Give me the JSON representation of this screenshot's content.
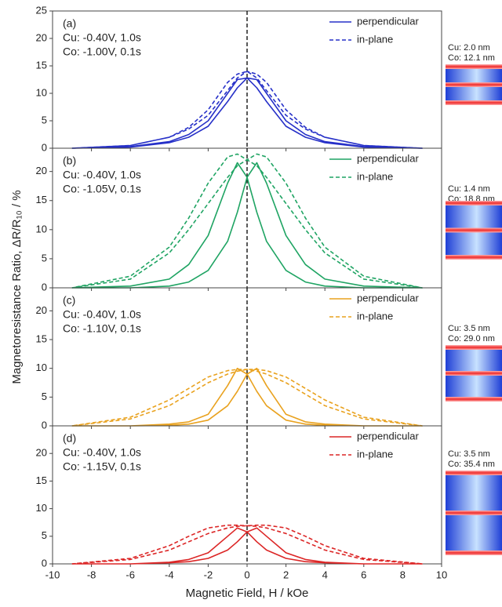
{
  "ylabel": "Magnetoresistance Ratio, ΔR/R₁₀ / %",
  "chart_data": [
    {
      "type": "line",
      "annotations": [
        "(a)",
        "Cu: -0.40V, 1.0s",
        "Co: -1.00V, 0.1s"
      ],
      "color": "#2630c8",
      "side_labels": [
        "Cu: 2.0 nm",
        "Co: 12.1 nm"
      ],
      "ylim": [
        0,
        25
      ],
      "yticks": [
        0,
        5,
        10,
        15,
        20,
        25
      ],
      "vline": 0,
      "series": [
        {
          "name": "perpendicular",
          "linestyle": "solid",
          "color": "#2630c8",
          "x": [
            -9,
            -6,
            -4,
            -3,
            -2,
            -1,
            -0.5,
            0,
            0.5,
            1,
            2,
            3,
            4,
            6,
            9,
            9,
            6,
            4,
            3,
            2,
            1,
            0.5,
            0,
            -0.5,
            -1,
            -2,
            -3,
            -4,
            -6,
            -9
          ],
          "values": [
            0,
            0.2,
            1,
            2,
            4,
            8.5,
            11,
            12.8,
            12.5,
            10,
            5,
            2.5,
            1.2,
            0.3,
            0,
            0,
            0.2,
            1,
            2,
            4,
            8.5,
            11,
            12.8,
            12.5,
            10,
            5,
            2.5,
            1.2,
            0.3,
            0
          ]
        },
        {
          "name": "in-plane",
          "linestyle": "dashed",
          "color": "#2630c8",
          "x": [
            -9,
            -6,
            -4,
            -3,
            -2,
            -1,
            -0.5,
            0,
            0.5,
            1,
            2,
            3,
            4,
            6,
            9,
            9,
            6,
            4,
            3,
            2,
            1,
            0.5,
            0,
            -0.5,
            -1,
            -2,
            -3,
            -4,
            -6,
            -9
          ],
          "values": [
            0,
            0.5,
            2,
            3.5,
            6,
            10.5,
            12.8,
            14,
            13.5,
            12,
            7,
            3.8,
            2,
            0.5,
            0,
            0,
            0.5,
            2,
            3.5,
            6,
            10.5,
            12.8,
            14,
            13.5,
            12,
            7,
            3.8,
            2,
            0.5,
            0
          ]
        }
      ]
    },
    {
      "type": "line",
      "annotations": [
        "(b)",
        "Cu: -0.40V, 1.0s",
        "Co: -1.05V, 0.1s"
      ],
      "color": "#1fa463",
      "side_labels": [
        "Cu: 1.4 nm",
        "Co: 18.8 nm"
      ],
      "ylim": [
        0,
        24
      ],
      "yticks": [
        0,
        5,
        10,
        15,
        20
      ],
      "vline": 0,
      "series": [
        {
          "name": "perpendicular",
          "linestyle": "solid",
          "color": "#1fa463",
          "x": [
            -9,
            -6,
            -4,
            -3,
            -2,
            -1,
            -0.5,
            0,
            0.5,
            1,
            2,
            3,
            4,
            6,
            9,
            9,
            6,
            4,
            3,
            2,
            1,
            0.5,
            0,
            -0.5,
            -1,
            -2,
            -3,
            -4,
            -6,
            -9
          ],
          "values": [
            0,
            0,
            0.3,
            1,
            3,
            8,
            13,
            19,
            21.5,
            18,
            9,
            4,
            1.5,
            0.3,
            0,
            0,
            0,
            0.3,
            1,
            3,
            8,
            13,
            19,
            21.5,
            18,
            9,
            4,
            1.5,
            0.3,
            0
          ]
        },
        {
          "name": "in-plane",
          "linestyle": "dashed",
          "color": "#1fa463",
          "x": [
            -9,
            -6,
            -4,
            -3,
            -2,
            -1,
            -0.5,
            0,
            0.5,
            1,
            2,
            3,
            4,
            6,
            9,
            9,
            6,
            4,
            3,
            2,
            1,
            0.5,
            0,
            -0.5,
            -1,
            -2,
            -3,
            -4,
            -6,
            -9
          ],
          "values": [
            0,
            1.5,
            6,
            10,
            14.5,
            19,
            21,
            22,
            23,
            22.5,
            18,
            12,
            7,
            2,
            0,
            0,
            1.5,
            6,
            10,
            14.5,
            19,
            21,
            22,
            23,
            22.5,
            18,
            12,
            7,
            2,
            0
          ]
        }
      ]
    },
    {
      "type": "line",
      "annotations": [
        "(c)",
        "Cu: -0.40V, 1.0s",
        "Co: -1.10V, 0.1s"
      ],
      "color": "#e9a21f",
      "side_labels": [
        "Cu: 3.5 nm",
        "Co: 29.0 nm"
      ],
      "ylim": [
        0,
        24
      ],
      "yticks": [
        0,
        5,
        10,
        15,
        20
      ],
      "vline": 0,
      "series": [
        {
          "name": "perpendicular",
          "linestyle": "solid",
          "color": "#e9a21f",
          "x": [
            -9,
            -6,
            -4,
            -3,
            -2,
            -1,
            -0.5,
            0,
            0.5,
            1,
            2,
            3,
            4,
            6,
            9,
            9,
            6,
            4,
            3,
            2,
            1,
            0.5,
            0,
            -0.5,
            -1,
            -2,
            -3,
            -4,
            -6,
            -9
          ],
          "values": [
            0,
            0,
            0.1,
            0.3,
            1,
            3.5,
            6,
            9,
            10,
            7,
            2,
            0.7,
            0.3,
            0,
            0,
            0,
            0,
            0.1,
            0.3,
            1,
            3.5,
            6,
            9,
            10,
            7,
            2,
            0.7,
            0.3,
            0,
            0
          ]
        },
        {
          "name": "in-plane",
          "linestyle": "dashed",
          "color": "#e9a21f",
          "x": [
            -9,
            -6,
            -4,
            -3,
            -2,
            -1,
            -0.5,
            0,
            0.5,
            1,
            2,
            3,
            4,
            6,
            9,
            9,
            6,
            4,
            3,
            2,
            1,
            0.5,
            0,
            -0.5,
            -1,
            -2,
            -3,
            -4,
            -6,
            -9
          ],
          "values": [
            0,
            1.2,
            3.5,
            5.5,
            7.5,
            9,
            9.5,
            9.8,
            9.8,
            9.6,
            8.5,
            6.5,
            4.5,
            1.5,
            0,
            0,
            1.2,
            3.5,
            5.5,
            7.5,
            9,
            9.5,
            9.8,
            9.8,
            9.6,
            8.5,
            6.5,
            4.5,
            1.5,
            0
          ]
        }
      ]
    },
    {
      "type": "line",
      "annotations": [
        "(d)",
        "Cu: -0.40V, 1.0s",
        "Co: -1.15V, 0.1s"
      ],
      "color": "#dc2626",
      "side_labels": [
        "Cu: 3.5 nm",
        "Co: 35.4 nm"
      ],
      "ylim": [
        0,
        25
      ],
      "yticks": [
        0,
        5,
        10,
        15,
        20
      ],
      "vline": 0,
      "xlabel": "Magnetic Field, H / kOe",
      "xlim": [
        -10,
        10
      ],
      "xticks": [
        -10,
        -8,
        -6,
        -4,
        -2,
        0,
        2,
        4,
        6,
        8,
        10
      ],
      "series": [
        {
          "name": "perpendicular",
          "linestyle": "solid",
          "color": "#dc2626",
          "x": [
            -9,
            -6,
            -4,
            -3,
            -2,
            -1,
            -0.5,
            0,
            0.5,
            1,
            2,
            3,
            4,
            6,
            9,
            9,
            6,
            4,
            3,
            2,
            1,
            0.5,
            0,
            -0.5,
            -1,
            -2,
            -3,
            -4,
            -6,
            -9
          ],
          "values": [
            0,
            0,
            0.2,
            0.4,
            1,
            2.5,
            4,
            5.8,
            6.5,
            5,
            2,
            0.8,
            0.3,
            0,
            0,
            0,
            0,
            0.2,
            0.4,
            1,
            2.5,
            4,
            5.8,
            6.5,
            5,
            2,
            0.8,
            0.3,
            0,
            0
          ]
        },
        {
          "name": "in-plane",
          "linestyle": "dashed",
          "color": "#dc2626",
          "x": [
            -9,
            -6,
            -4,
            -3,
            -2,
            -1,
            -0.5,
            0,
            0.5,
            1,
            2,
            3,
            4,
            6,
            9,
            9,
            6,
            4,
            3,
            2,
            1,
            0.5,
            0,
            -0.5,
            -1,
            -2,
            -3,
            -4,
            -6,
            -9
          ],
          "values": [
            0,
            0.8,
            2.5,
            4,
            5.5,
            6.5,
            6.8,
            6.9,
            7,
            7,
            6.5,
            5,
            3.3,
            1,
            0,
            0,
            0.8,
            2.5,
            4,
            5.5,
            6.5,
            6.8,
            6.9,
            7,
            7,
            6.5,
            5,
            3.3,
            1,
            0
          ]
        }
      ]
    }
  ]
}
